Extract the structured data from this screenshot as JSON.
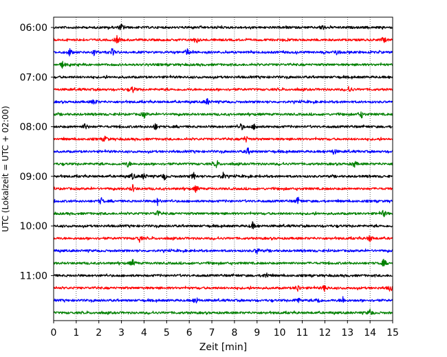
{
  "chart_data": {
    "type": "line",
    "subtype": "helicorder",
    "xlabel": "Zeit  [min]",
    "ylabel": "UTC (Lokalzeit = UTC + 02:00)",
    "xlim": [
      0,
      15
    ],
    "x_ticks": [
      "0",
      "1",
      "2",
      "3",
      "4",
      "5",
      "6",
      "7",
      "8",
      "9",
      "10",
      "11",
      "12",
      "13",
      "14",
      "15"
    ],
    "y_tick_labels": [
      "06:00",
      "07:00",
      "08:00",
      "09:00",
      "10:00",
      "11:00"
    ],
    "grid": "vertical dotted lines at each minute",
    "trace_colors": [
      "#000000",
      "#ff0000",
      "#0000ff",
      "#008000"
    ],
    "rows": [
      {
        "start_utc": "06:00",
        "color": "#000000",
        "events_min": [
          3.0,
          11.9
        ]
      },
      {
        "start_utc": "06:15",
        "color": "#ff0000",
        "events_min": [
          2.8,
          6.3,
          14.6
        ]
      },
      {
        "start_utc": "06:30",
        "color": "#0000ff",
        "events_min": [
          0.7,
          1.8,
          2.6,
          5.9,
          12.5
        ]
      },
      {
        "start_utc": "06:45",
        "color": "#008000",
        "events_min": [
          0.4
        ]
      },
      {
        "start_utc": "07:00",
        "color": "#000000",
        "events_min": []
      },
      {
        "start_utc": "07:15",
        "color": "#ff0000",
        "events_min": [
          3.5,
          13.1
        ]
      },
      {
        "start_utc": "07:30",
        "color": "#0000ff",
        "events_min": [
          1.8,
          6.8
        ]
      },
      {
        "start_utc": "07:45",
        "color": "#008000",
        "events_min": [
          4.0,
          13.6
        ]
      },
      {
        "start_utc": "08:00",
        "color": "#000000",
        "events_min": [
          1.4,
          4.5,
          8.3,
          8.9
        ]
      },
      {
        "start_utc": "08:15",
        "color": "#ff0000",
        "events_min": [
          2.3,
          8.5
        ]
      },
      {
        "start_utc": "08:30",
        "color": "#0000ff",
        "events_min": [
          8.6,
          12.4
        ]
      },
      {
        "start_utc": "08:45",
        "color": "#008000",
        "events_min": [
          3.3,
          7.2,
          13.3
        ]
      },
      {
        "start_utc": "09:00",
        "color": "#000000",
        "events_min": [
          3.5,
          4.0,
          4.9,
          6.2,
          7.5
        ]
      },
      {
        "start_utc": "09:15",
        "color": "#ff0000",
        "events_min": [
          3.5,
          6.3
        ]
      },
      {
        "start_utc": "09:30",
        "color": "#0000ff",
        "events_min": [
          2.1,
          4.6,
          10.8
        ]
      },
      {
        "start_utc": "09:45",
        "color": "#008000",
        "events_min": [
          4.6,
          14.6
        ]
      },
      {
        "start_utc": "10:00",
        "color": "#000000",
        "events_min": [
          8.8
        ]
      },
      {
        "start_utc": "10:15",
        "color": "#ff0000",
        "events_min": [
          3.8,
          14.0
        ]
      },
      {
        "start_utc": "10:30",
        "color": "#0000ff",
        "events_min": [
          9.0
        ]
      },
      {
        "start_utc": "10:45",
        "color": "#008000",
        "events_min": [
          3.5,
          14.6
        ]
      },
      {
        "start_utc": "11:00",
        "color": "#000000",
        "events_min": [
          9.4
        ]
      },
      {
        "start_utc": "11:15",
        "color": "#ff0000",
        "events_min": [
          10.8,
          12.0,
          14.9
        ]
      },
      {
        "start_utc": "11:30",
        "color": "#0000ff",
        "events_min": [
          6.3,
          10.8,
          11.7,
          12.8
        ]
      },
      {
        "start_utc": "11:45",
        "color": "#008000",
        "events_min": [
          14.0
        ]
      }
    ]
  }
}
